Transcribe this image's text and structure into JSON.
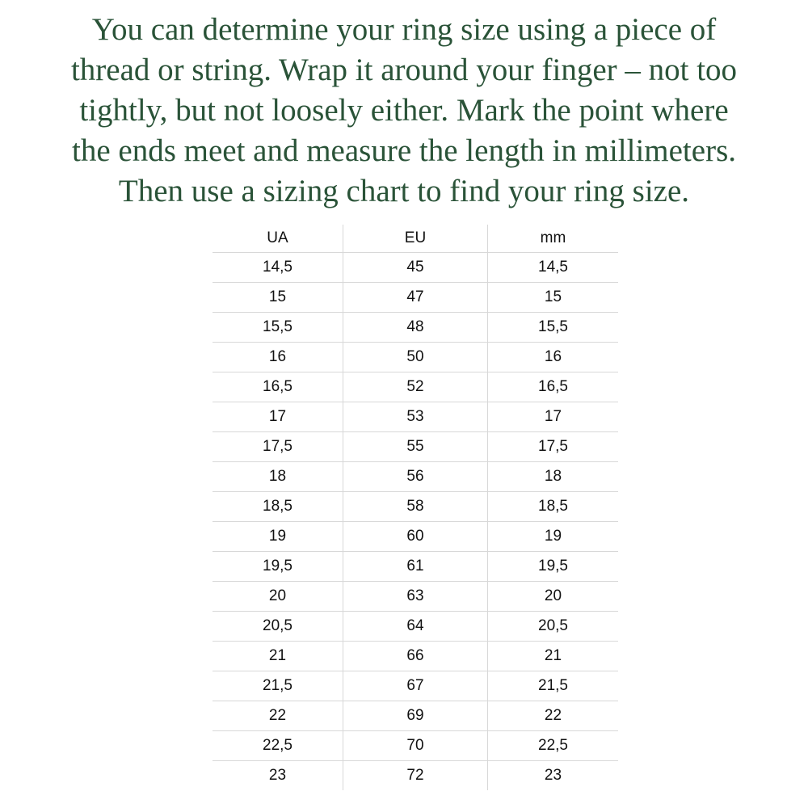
{
  "intro": {
    "lines": [
      "You can determine your ring size using a piece of",
      "thread or string. Wrap it around your finger – not too",
      "tightly, but not loosely either. Mark the point where",
      "the ends meet and measure the length in millimeters.",
      "Then use a sizing chart to find your ring size."
    ],
    "color": "#2a5338"
  },
  "table": {
    "headers": [
      "UA",
      "EU",
      "mm"
    ],
    "rows": [
      [
        "14,5",
        "45",
        "14,5"
      ],
      [
        "15",
        "47",
        "15"
      ],
      [
        "15,5",
        "48",
        "15,5"
      ],
      [
        "16",
        "50",
        "16"
      ],
      [
        "16,5",
        "52",
        "16,5"
      ],
      [
        "17",
        "53",
        "17"
      ],
      [
        "17,5",
        "55",
        "17,5"
      ],
      [
        "18",
        "56",
        "18"
      ],
      [
        "18,5",
        "58",
        "18,5"
      ],
      [
        "19",
        "60",
        "19"
      ],
      [
        "19,5",
        "61",
        "19,5"
      ],
      [
        "20",
        "63",
        "20"
      ],
      [
        "20,5",
        "64",
        "20,5"
      ],
      [
        "21",
        "66",
        "21"
      ],
      [
        "21,5",
        "67",
        "21,5"
      ],
      [
        "22",
        "69",
        "22"
      ],
      [
        "22,5",
        "70",
        "22,5"
      ],
      [
        "23",
        "72",
        "23"
      ]
    ]
  }
}
